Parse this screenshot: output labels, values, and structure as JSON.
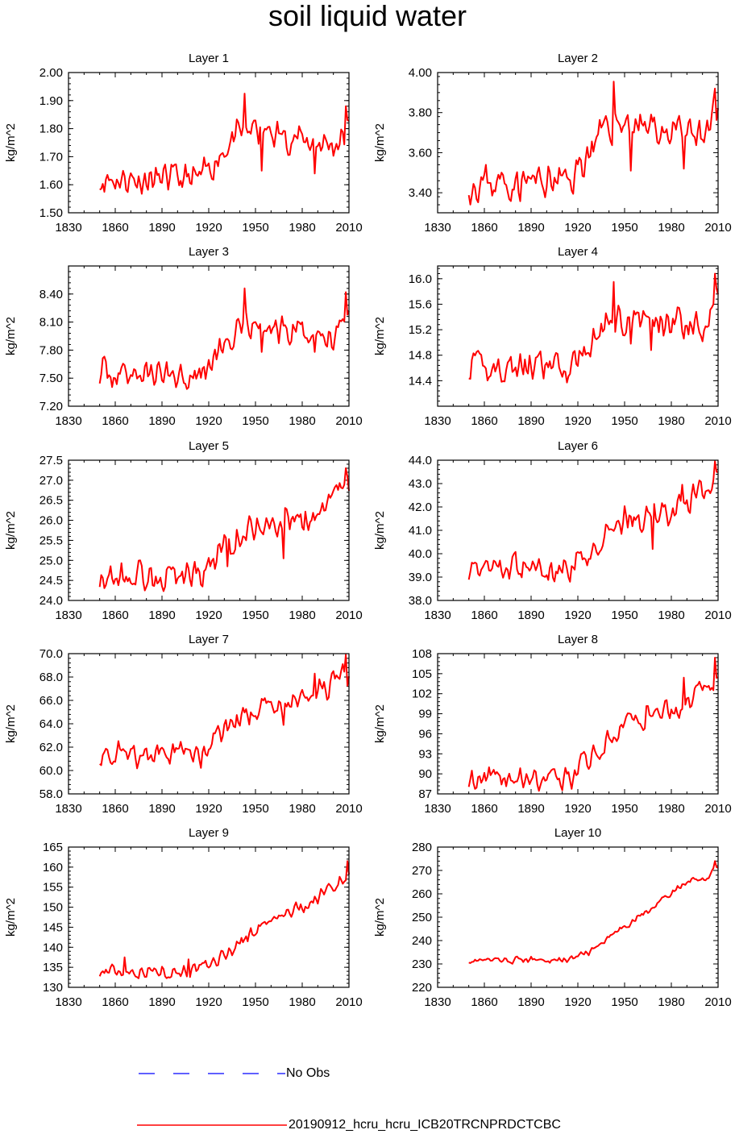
{
  "title": "soil liquid water",
  "legend": {
    "obs_label": "No Obs",
    "model_label": "20190912_hcru_hcru_ICB20TRCNPRDCTCBC",
    "obs_color": "#0000ff",
    "model_color": "#ff0000"
  },
  "chart_data": [
    {
      "type": "line",
      "title": "Layer 1",
      "ylabel": "kg/m^2",
      "xlim": [
        1830,
        2010
      ],
      "ylim": [
        1.5,
        2.0
      ],
      "xticks": [
        1830,
        1860,
        1890,
        1920,
        1950,
        1980,
        2010
      ],
      "yticks": [
        1.5,
        1.6,
        1.7,
        1.8,
        1.9,
        2.0
      ],
      "ytick_labels": [
        "1.50",
        "1.60",
        "1.70",
        "1.80",
        "1.90",
        "2.00"
      ],
      "x_start": 1850,
      "x_end": 2010,
      "trend": [
        [
          1850,
          1.62
        ],
        [
          1915,
          1.62
        ],
        [
          1930,
          1.73
        ],
        [
          1945,
          1.8
        ],
        [
          2000,
          1.74
        ],
        [
          2010,
          1.79
        ]
      ],
      "amp": 0.045,
      "min": 1.555,
      "max": 1.925,
      "spikes": [
        [
          1943,
          1.925
        ],
        [
          2008,
          1.88
        ],
        [
          1954,
          1.65
        ],
        [
          1988,
          1.64
        ]
      ],
      "seed": 11,
      "series": [
        {
          "name": "20190912_hcru_hcru_ICB20TRCNPRDCTCBC",
          "color": "#ff0000"
        }
      ]
    },
    {
      "type": "line",
      "title": "Layer 2",
      "ylabel": "kg/m^2",
      "xlim": [
        1830,
        2010
      ],
      "ylim": [
        3.3,
        4.0
      ],
      "xticks": [
        1830,
        1860,
        1890,
        1920,
        1950,
        1980,
        2010
      ],
      "yticks": [
        3.4,
        3.6,
        3.8,
        4.0
      ],
      "ytick_labels": [
        "3.40",
        "3.60",
        "3.80",
        "4.00"
      ],
      "x_start": 1850,
      "x_end": 2010,
      "trend": [
        [
          1850,
          3.45
        ],
        [
          1915,
          3.46
        ],
        [
          1930,
          3.64
        ],
        [
          1945,
          3.76
        ],
        [
          2000,
          3.67
        ],
        [
          2010,
          3.8
        ]
      ],
      "amp": 0.075,
      "min": 3.34,
      "max": 3.955,
      "spikes": [
        [
          1943,
          3.955
        ],
        [
          2008,
          3.92
        ],
        [
          1954,
          3.51
        ],
        [
          1988,
          3.52
        ]
      ],
      "seed": 23,
      "series": [
        {
          "name": "20190912_hcru_hcru_ICB20TRCNPRDCTCBC",
          "color": "#ff0000"
        }
      ]
    },
    {
      "type": "line",
      "title": "Layer 3",
      "ylabel": "kg/m^2",
      "xlim": [
        1830,
        2010
      ],
      "ylim": [
        7.2,
        8.7
      ],
      "xticks": [
        1830,
        1860,
        1890,
        1920,
        1950,
        1980,
        2010
      ],
      "yticks": [
        7.2,
        7.5,
        7.8,
        8.1,
        8.4
      ],
      "ytick_labels": [
        "7.20",
        "7.50",
        "7.80",
        "8.10",
        "8.40"
      ],
      "x_start": 1850,
      "x_end": 2010,
      "trend": [
        [
          1850,
          7.55
        ],
        [
          1915,
          7.55
        ],
        [
          1930,
          7.85
        ],
        [
          1945,
          8.05
        ],
        [
          2000,
          7.95
        ],
        [
          2010,
          8.25
        ]
      ],
      "amp": 0.13,
      "min": 7.31,
      "max": 8.46,
      "spikes": [
        [
          1943,
          8.46
        ],
        [
          2008,
          8.42
        ],
        [
          1954,
          7.78
        ],
        [
          1988,
          7.78
        ]
      ],
      "seed": 37,
      "series": [
        {
          "name": "20190912_hcru_hcru_ICB20TRCNPRDCTCBC",
          "color": "#ff0000"
        }
      ]
    },
    {
      "type": "line",
      "title": "Layer 4",
      "ylabel": "kg/m^2",
      "xlim": [
        1830,
        2010
      ],
      "ylim": [
        14.0,
        16.2
      ],
      "xticks": [
        1830,
        1860,
        1890,
        1920,
        1950,
        1980,
        2010
      ],
      "yticks": [
        14.4,
        14.8,
        15.2,
        15.6,
        16.0
      ],
      "ytick_labels": [
        "14.4",
        "14.8",
        "15.2",
        "15.6",
        "16.0"
      ],
      "x_start": 1850,
      "x_end": 2010,
      "trend": [
        [
          1850,
          14.6
        ],
        [
          1915,
          14.6
        ],
        [
          1930,
          15.05
        ],
        [
          1945,
          15.4
        ],
        [
          2000,
          15.3
        ],
        [
          2010,
          15.75
        ]
      ],
      "amp": 0.2,
      "min": 14.22,
      "max": 16.08,
      "spikes": [
        [
          1943,
          15.95
        ],
        [
          2008,
          16.08
        ],
        [
          1954,
          14.98
        ],
        [
          1967,
          14.88
        ]
      ],
      "seed": 41,
      "series": [
        {
          "name": "20190912_hcru_hcru_ICB20TRCNPRDCTCBC",
          "color": "#ff0000"
        }
      ]
    },
    {
      "type": "line",
      "title": "Layer 5",
      "ylabel": "kg/m^2",
      "xlim": [
        1830,
        2010
      ],
      "ylim": [
        24.0,
        27.5
      ],
      "xticks": [
        1830,
        1860,
        1890,
        1920,
        1950,
        1980,
        2010
      ],
      "yticks": [
        24.0,
        24.5,
        25.0,
        25.5,
        26.0,
        26.5,
        27.0,
        27.5
      ],
      "ytick_labels": [
        "24.0",
        "24.5",
        "25.0",
        "25.5",
        "26.0",
        "26.5",
        "27.0",
        "27.5"
      ],
      "x_start": 1850,
      "x_end": 2010,
      "trend": [
        [
          1850,
          24.6
        ],
        [
          1915,
          24.65
        ],
        [
          1930,
          25.3
        ],
        [
          1950,
          25.9
        ],
        [
          1985,
          25.95
        ],
        [
          2010,
          26.9
        ]
      ],
      "amp": 0.32,
      "min": 24.12,
      "max": 27.3,
      "spikes": [
        [
          2008,
          27.3
        ],
        [
          1968,
          25.05
        ],
        [
          1932,
          24.85
        ]
      ],
      "seed": 53,
      "series": [
        {
          "name": "20190912_hcru_hcru_ICB20TRCNPRDCTCBC",
          "color": "#ff0000"
        }
      ]
    },
    {
      "type": "line",
      "title": "Layer 6",
      "ylabel": "kg/m^2",
      "xlim": [
        1830,
        2010
      ],
      "ylim": [
        38.0,
        44.0
      ],
      "xticks": [
        1830,
        1860,
        1890,
        1920,
        1950,
        1980,
        2010
      ],
      "yticks": [
        38,
        39,
        40,
        41,
        42,
        43,
        44
      ],
      "ytick_labels": [
        "38.0",
        "39.0",
        "40.0",
        "41.0",
        "42.0",
        "43.0",
        "44.0"
      ],
      "x_start": 1850,
      "x_end": 2010,
      "trend": [
        [
          1850,
          39.3
        ],
        [
          1915,
          39.4
        ],
        [
          1930,
          40.4
        ],
        [
          1950,
          41.4
        ],
        [
          1985,
          41.9
        ],
        [
          2010,
          43.2
        ]
      ],
      "amp": 0.5,
      "min": 38.55,
      "max": 43.95,
      "spikes": [
        [
          2008,
          43.95
        ],
        [
          1968,
          40.2
        ],
        [
          1987,
          42.95
        ]
      ],
      "seed": 67,
      "series": [
        {
          "name": "20190912_hcru_hcru_ICB20TRCNPRDCTCBC",
          "color": "#ff0000"
        }
      ]
    },
    {
      "type": "line",
      "title": "Layer 7",
      "ylabel": "kg/m^2",
      "xlim": [
        1830,
        2010
      ],
      "ylim": [
        58.0,
        70.0
      ],
      "xticks": [
        1830,
        1860,
        1890,
        1920,
        1950,
        1980,
        2010
      ],
      "yticks": [
        58,
        60,
        62,
        64,
        66,
        68,
        70
      ],
      "ytick_labels": [
        "58.0",
        "60.0",
        "62.0",
        "64.0",
        "66.0",
        "68.0",
        "70.0"
      ],
      "x_start": 1850,
      "x_end": 2010,
      "trend": [
        [
          1850,
          61.3
        ],
        [
          1915,
          61.4
        ],
        [
          1930,
          63.3
        ],
        [
          1950,
          65.2
        ],
        [
          1985,
          66.3
        ],
        [
          2010,
          68.5
        ]
      ],
      "amp": 0.9,
      "min": 59.9,
      "max": 69.9,
      "spikes": [
        [
          2008,
          69.9
        ],
        [
          1968,
          63.9
        ],
        [
          1988,
          68.3
        ]
      ],
      "seed": 71,
      "series": [
        {
          "name": "20190912_hcru_hcru_ICB20TRCNPRDCTCBC",
          "color": "#ff0000"
        }
      ]
    },
    {
      "type": "line",
      "title": "Layer 8",
      "ylabel": "kg/m^2",
      "xlim": [
        1830,
        2010
      ],
      "ylim": [
        87.0,
        108.0
      ],
      "xticks": [
        1830,
        1860,
        1890,
        1920,
        1950,
        1980,
        2010
      ],
      "yticks": [
        87,
        90,
        93,
        96,
        99,
        102,
        105,
        108
      ],
      "ytick_labels": [
        "87",
        "90",
        "93",
        "96",
        "99",
        "102",
        "105",
        "108"
      ],
      "x_start": 1850,
      "x_end": 2010,
      "trend": [
        [
          1850,
          89.2
        ],
        [
          1915,
          89.4
        ],
        [
          1930,
          93.0
        ],
        [
          1950,
          97.5
        ],
        [
          1985,
          100.0
        ],
        [
          2010,
          104.0
        ]
      ],
      "amp": 1.4,
      "min": 87.2,
      "max": 107.4,
      "spikes": [
        [
          2008,
          107.4
        ],
        [
          1988,
          104.4
        ],
        [
          1963,
          96.8
        ]
      ],
      "seed": 83,
      "series": [
        {
          "name": "20190912_hcru_hcru_ICB20TRCNPRDCTCBC",
          "color": "#ff0000"
        }
      ]
    },
    {
      "type": "line",
      "title": "Layer 9",
      "ylabel": "kg/m^2",
      "xlim": [
        1830,
        2010
      ],
      "ylim": [
        130.0,
        165.0
      ],
      "xticks": [
        1830,
        1860,
        1890,
        1920,
        1950,
        1980,
        2010
      ],
      "yticks": [
        130,
        135,
        140,
        145,
        150,
        155,
        160,
        165
      ],
      "ytick_labels": [
        "130",
        "135",
        "140",
        "145",
        "150",
        "155",
        "160",
        "165"
      ],
      "x_start": 1850,
      "x_end": 2010,
      "trend": [
        [
          1850,
          134.0
        ],
        [
          1915,
          134.2
        ],
        [
          1930,
          138.0
        ],
        [
          1950,
          144.5
        ],
        [
          1985,
          151.0
        ],
        [
          2010,
          158.5
        ]
      ],
      "amp": 1.5,
      "min": 131.3,
      "max": 161.5,
      "spikes": [
        [
          2009,
          161.5
        ],
        [
          1866,
          137.5
        ],
        [
          1907,
          137.0
        ]
      ],
      "seed": 97,
      "series": [
        {
          "name": "20190912_hcru_hcru_ICB20TRCNPRDCTCBC",
          "color": "#ff0000"
        }
      ]
    },
    {
      "type": "line",
      "title": "Layer 10",
      "ylabel": "kg/m^2",
      "xlim": [
        1830,
        2010
      ],
      "ylim": [
        220.0,
        280.0
      ],
      "xticks": [
        1830,
        1860,
        1890,
        1920,
        1950,
        1980,
        2010
      ],
      "yticks": [
        220,
        230,
        240,
        250,
        260,
        270,
        280
      ],
      "ytick_labels": [
        "220",
        "230",
        "240",
        "250",
        "260",
        "270",
        "280"
      ],
      "x_start": 1850,
      "x_end": 2010,
      "trend": [
        [
          1850,
          231.5
        ],
        [
          1915,
          231.8
        ],
        [
          1930,
          236.0
        ],
        [
          1950,
          246.0
        ],
        [
          1975,
          258.0
        ],
        [
          1995,
          267.0
        ],
        [
          2002,
          266.0
        ],
        [
          2010,
          272.5
        ]
      ],
      "amp": 1.1,
      "min": 229.5,
      "max": 274.0,
      "spikes": [
        [
          2008,
          274.0
        ]
      ],
      "seed": 101,
      "series": [
        {
          "name": "20190912_hcru_hcru_ICB20TRCNPRDCTCBC",
          "color": "#ff0000"
        }
      ]
    }
  ]
}
